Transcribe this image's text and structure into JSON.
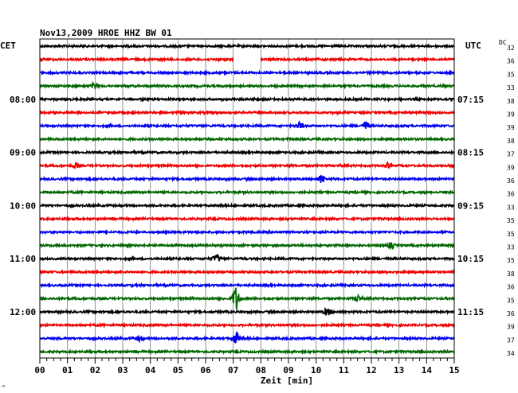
{
  "chart_data": {
    "type": "line",
    "title": "Nov13,2009   HROE HHZ BW 01",
    "xlabel": "Zeit [min]",
    "x_ticks": [
      "00",
      "01",
      "02",
      "03",
      "04",
      "05",
      "06",
      "07",
      "08",
      "09",
      "10",
      "11",
      "12",
      "13",
      "14",
      "15"
    ],
    "xlim": [
      0,
      15
    ],
    "left_axis_label": "CET",
    "right_axis_label": "UTC",
    "dc_label": "DC",
    "left_time_labels": [
      "08:00",
      "09:00",
      "10:00",
      "11:00",
      "12:00"
    ],
    "right_time_labels": [
      "07:15",
      "08:15",
      "09:15",
      "10:15",
      "11:15"
    ],
    "label_every_n_traces": 4,
    "first_labeled_trace": 4,
    "trace_count": 24,
    "trace_colors": [
      "#000000",
      "#ee0000",
      "#0000ee",
      "#006600"
    ],
    "dc_values": [
      "32",
      "36",
      "35",
      "33",
      "38",
      "39",
      "39",
      "38",
      "37",
      "39",
      "36",
      "36",
      "33",
      "35",
      "35",
      "33",
      "35",
      "38",
      "36",
      "35",
      "36",
      "39",
      "37",
      "34"
    ],
    "gaps": [
      {
        "trace": 1,
        "start_min": 7.0,
        "end_min": 8.0
      }
    ],
    "events": [
      {
        "trace": 3,
        "min": 2.0,
        "amp": 4
      },
      {
        "trace": 6,
        "min": 9.4,
        "amp": 4
      },
      {
        "trace": 6,
        "min": 11.8,
        "amp": 5
      },
      {
        "trace": 9,
        "min": 1.3,
        "amp": 3
      },
      {
        "trace": 9,
        "min": 12.6,
        "amp": 3
      },
      {
        "trace": 10,
        "min": 10.2,
        "amp": 5
      },
      {
        "trace": 15,
        "min": 12.7,
        "amp": 3
      },
      {
        "trace": 16,
        "min": 6.4,
        "amp": 5
      },
      {
        "trace": 19,
        "min": 7.1,
        "amp": 15
      },
      {
        "trace": 19,
        "min": 11.5,
        "amp": 4
      },
      {
        "trace": 20,
        "min": 10.4,
        "amp": 4
      },
      {
        "trace": 22,
        "min": 7.1,
        "amp": 7
      },
      {
        "trace": 22,
        "min": 3.6,
        "amp": 3
      }
    ],
    "footer_mark": "^"
  }
}
